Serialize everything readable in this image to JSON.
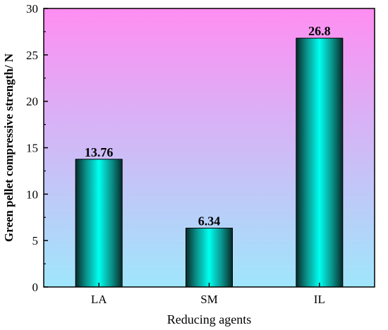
{
  "chart_data": {
    "type": "bar",
    "categories": [
      "LA",
      "SM",
      "IL"
    ],
    "values": [
      13.76,
      6.34,
      26.8
    ],
    "data_labels": [
      "13.76",
      "6.34",
      "26.8"
    ],
    "xlabel": "Reducing agents",
    "ylabel": "Green pellet compressive strength/ N",
    "ylim": [
      0,
      30
    ],
    "yticks": [
      0,
      5,
      10,
      15,
      20,
      25,
      30
    ],
    "ytick_labels": [
      "0",
      "5",
      "10",
      "15",
      "20",
      "25",
      "30"
    ],
    "grid": false,
    "legend": false,
    "colors": {
      "background_top": "#ff8ef2",
      "background_bottom": "#9fe6fb",
      "bar_center": "#00fff0",
      "bar_edge": "#062a28",
      "axis": "#000000"
    }
  }
}
